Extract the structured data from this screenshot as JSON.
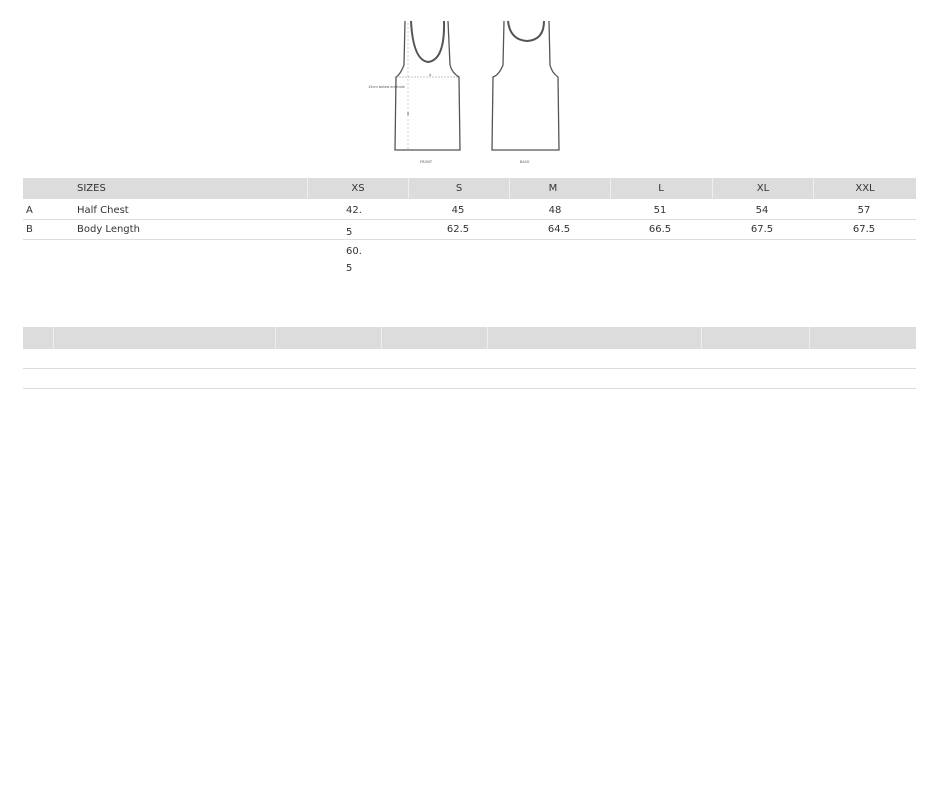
{
  "diagram": {
    "front_label": "FRONT",
    "back_label": "BACK",
    "note": "15cm below armhole",
    "mark_a": "A",
    "mark_b": "B"
  },
  "table": {
    "header": "SIZES",
    "sizes": [
      "XS",
      "S",
      "M",
      "L",
      "XL",
      "XXL"
    ],
    "rows": [
      {
        "code": "A",
        "label": "Half Chest",
        "values": [
          "42.5",
          "45",
          "48",
          "51",
          "54",
          "57"
        ]
      },
      {
        "code": "B",
        "label": "Body Length",
        "values": [
          "60.5",
          "62.5",
          "64.5",
          "66.5",
          "67.5",
          "67.5"
        ]
      }
    ],
    "xs_wrapped": [
      "42.",
      "5",
      "60.",
      "5"
    ]
  }
}
